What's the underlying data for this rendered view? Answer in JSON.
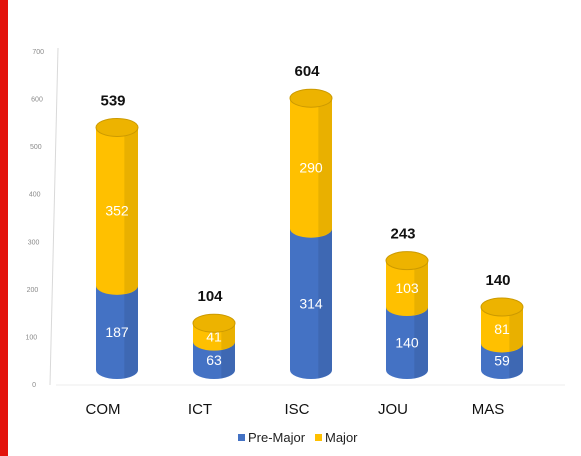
{
  "chart_data": {
    "type": "bar",
    "stacked": true,
    "style": "3d-cylinder",
    "categories": [
      "COM",
      "ICT",
      "ISC",
      "JOU",
      "MAS"
    ],
    "series": [
      {
        "name": "Pre-Major",
        "color": "#4472c4",
        "values": [
          187,
          63,
          314,
          140,
          59
        ]
      },
      {
        "name": "Major",
        "color": "#ffc000",
        "values": [
          352,
          41,
          290,
          103,
          81
        ]
      }
    ],
    "totals": [
      539,
      104,
      604,
      243,
      140
    ],
    "ylim": [
      0,
      700
    ],
    "yticks": [
      0,
      100,
      200,
      300,
      400,
      500,
      600,
      700
    ],
    "title": "",
    "xlabel": "",
    "ylabel": "",
    "legend": "bottom",
    "grid": false
  }
}
